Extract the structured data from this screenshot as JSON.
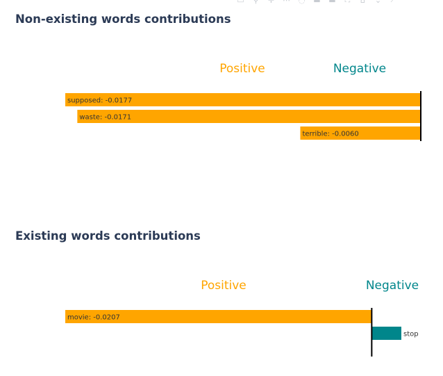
{
  "toolbar": {
    "icons": [
      "camera-icon",
      "zoom-icon",
      "pan-icon",
      "lasso-icon",
      "select-icon",
      "zoom-in-icon",
      "zoom-out-icon",
      "autoscale-icon",
      "reset-icon",
      "spike-icon",
      "hover-icon"
    ]
  },
  "colors": {
    "positive": "#FFA500",
    "negative": "#00868B",
    "axis": "#000000",
    "title": "#2B3A55",
    "label_text": "#333333"
  },
  "sections": [
    {
      "title": "Non-existing words contributions",
      "positive_label": "Positive",
      "negative_label": "Negative"
    },
    {
      "title": "Existing words contributions",
      "positive_label": "Positive",
      "negative_label": "Negative"
    }
  ],
  "chart_data": [
    {
      "type": "bar",
      "orientation": "horizontal",
      "title": "Non-existing words contributions",
      "categories": [
        "supposed",
        "waste",
        "terrible"
      ],
      "values": [
        -0.0177,
        -0.0171,
        -0.006
      ],
      "labels": [
        "supposed: -0.0177",
        "waste: -0.0171",
        "terrible: -0.0060"
      ],
      "xlim": [
        -0.0177,
        0
      ],
      "zero_line": true,
      "legend": [
        "Positive",
        "Negative"
      ]
    },
    {
      "type": "bar",
      "orientation": "horizontal",
      "title": "Existing words contributions",
      "categories": [
        "movie",
        "stop"
      ],
      "values": [
        -0.0207,
        0.002
      ],
      "labels": [
        "movie: -0.0207",
        "stop"
      ],
      "xlim": [
        -0.0207,
        0.002
      ],
      "zero_line": true,
      "legend": [
        "Positive",
        "Negative"
      ]
    }
  ]
}
